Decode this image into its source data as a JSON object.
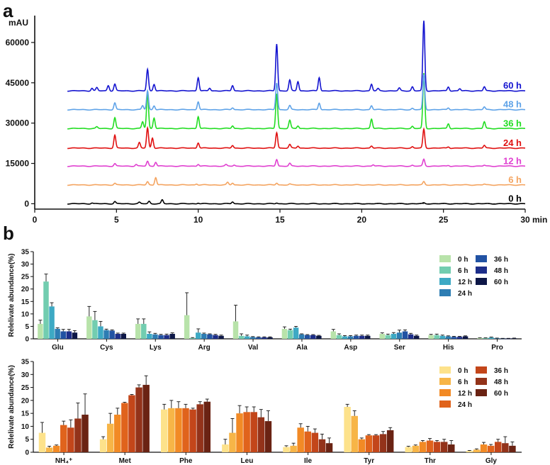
{
  "panel_a_letter": "a",
  "panel_b_letter": "b",
  "chart_data": [
    {
      "type": "line",
      "unit_label": "mAU",
      "xlabel": "min",
      "xlim": [
        0,
        30
      ],
      "ylim": [
        -2000,
        70000
      ],
      "xticks": [
        "0",
        "5",
        "10",
        "15",
        "20",
        "25",
        "30"
      ],
      "yticks": [
        "0",
        "15000",
        "30000",
        "45000",
        "60000"
      ],
      "xtick_values": [
        0,
        5,
        10,
        15,
        20,
        25,
        30
      ],
      "ytick_values": [
        0,
        15000,
        30000,
        45000,
        60000
      ],
      "series": [
        {
          "name": "0 h",
          "color": "#000000",
          "baseline": 0,
          "peaks": [
            [
              3.5,
              300
            ],
            [
              4.9,
              800
            ],
            [
              6.4,
              500
            ],
            [
              7.0,
              900
            ],
            [
              7.8,
              1400
            ],
            [
              10.0,
              300
            ],
            [
              12.1,
              700
            ],
            [
              14.8,
              300
            ],
            [
              23.8,
              300
            ]
          ]
        },
        {
          "name": "6 h",
          "color": "#f4a460",
          "baseline": 7000,
          "peaks": [
            [
              4.9,
              600
            ],
            [
              6.9,
              1200
            ],
            [
              7.4,
              2800
            ],
            [
              9.9,
              400
            ],
            [
              11.8,
              900
            ],
            [
              12.1,
              700
            ],
            [
              14.8,
              700
            ],
            [
              15.6,
              300
            ],
            [
              23.8,
              1200
            ],
            [
              27.5,
              300
            ]
          ]
        },
        {
          "name": "12 h",
          "color": "#e040d0",
          "baseline": 14000,
          "peaks": [
            [
              4.9,
              900
            ],
            [
              6.2,
              600
            ],
            [
              6.9,
              1800
            ],
            [
              7.4,
              1500
            ],
            [
              10.0,
              700
            ],
            [
              11.7,
              500
            ],
            [
              12.2,
              400
            ],
            [
              14.8,
              2500
            ],
            [
              15.6,
              1000
            ],
            [
              20.7,
              500
            ],
            [
              23.1,
              300
            ],
            [
              23.8,
              2500
            ],
            [
              25.3,
              300
            ],
            [
              27.5,
              300
            ]
          ]
        },
        {
          "name": "24 h",
          "color": "#e01010",
          "baseline": 20700,
          "peaks": [
            [
              4.9,
              4800
            ],
            [
              6.4,
              2000
            ],
            [
              6.9,
              7500
            ],
            [
              7.2,
              3800
            ],
            [
              10.0,
              2000
            ],
            [
              12.1,
              1000
            ],
            [
              14.8,
              5800
            ],
            [
              15.6,
              1300
            ],
            [
              16.1,
              800
            ],
            [
              20.6,
              800
            ],
            [
              23.1,
              500
            ],
            [
              23.8,
              7000
            ],
            [
              25.3,
              500
            ],
            [
              27.5,
              1000
            ]
          ]
        },
        {
          "name": "36 h",
          "color": "#22dd22",
          "baseline": 28000,
          "peaks": [
            [
              3.8,
              600
            ],
            [
              4.9,
              4000
            ],
            [
              6.6,
              2500
            ],
            [
              6.9,
              13000
            ],
            [
              7.3,
              4000
            ],
            [
              10.0,
              4500
            ],
            [
              12.1,
              1000
            ],
            [
              14.8,
              13000
            ],
            [
              15.6,
              3000
            ],
            [
              16.1,
              1000
            ],
            [
              20.6,
              3500
            ],
            [
              23.1,
              800
            ],
            [
              23.8,
              20500
            ],
            [
              25.3,
              1800
            ],
            [
              27.5,
              2500
            ]
          ]
        },
        {
          "name": "48 h",
          "color": "#5fa3e8",
          "baseline": 35000,
          "peaks": [
            [
              4.9,
              2500
            ],
            [
              6.6,
              1500
            ],
            [
              6.9,
              7000
            ],
            [
              7.3,
              1500
            ],
            [
              10.0,
              3000
            ],
            [
              12.1,
              700
            ],
            [
              14.8,
              10000
            ],
            [
              15.6,
              1500
            ],
            [
              17.4,
              2500
            ],
            [
              20.6,
              1500
            ],
            [
              23.1,
              500
            ],
            [
              23.8,
              13000
            ],
            [
              25.3,
              700
            ],
            [
              27.5,
              1000
            ]
          ]
        },
        {
          "name": "60 h",
          "color": "#1414d0",
          "baseline": 42000,
          "peaks": [
            [
              3.5,
              1000
            ],
            [
              3.8,
              1200
            ],
            [
              4.5,
              2000
            ],
            [
              4.9,
              2500
            ],
            [
              6.9,
              8000
            ],
            [
              7.3,
              2500
            ],
            [
              10.0,
              5000
            ],
            [
              10.7,
              1000
            ],
            [
              12.1,
              2000
            ],
            [
              14.8,
              17500
            ],
            [
              15.6,
              4000
            ],
            [
              16.1,
              3500
            ],
            [
              17.4,
              5000
            ],
            [
              20.6,
              2500
            ],
            [
              21.0,
              800
            ],
            [
              22.3,
              1000
            ],
            [
              23.1,
              1500
            ],
            [
              23.8,
              26000
            ],
            [
              25.3,
              1500
            ],
            [
              26.0,
              800
            ],
            [
              27.5,
              1500
            ]
          ]
        }
      ]
    },
    {
      "type": "bar",
      "ylabel": "Relelivate abundance(%)",
      "ylim": [
        0,
        35
      ],
      "yticks": [
        "0",
        "5",
        "10",
        "15",
        "20",
        "25",
        "30",
        "35"
      ],
      "ytick_values": [
        0,
        5,
        10,
        15,
        20,
        25,
        30,
        35
      ],
      "categories": [
        "Glu",
        "Cys",
        "Lys",
        "Arg",
        "Val",
        "Ala",
        "Asp",
        "Ser",
        "His",
        "Pro"
      ],
      "series": [
        {
          "name": "0 h",
          "color": "#b8e3aa",
          "values": [
            6.0,
            9.0,
            6.0,
            9.5,
            7.0,
            4.0,
            3.0,
            2.0,
            1.5,
            0.3
          ],
          "errors": [
            1.5,
            4.0,
            2.0,
            9.0,
            6.5,
            0.8,
            0.8,
            0.4,
            0.3,
            0.1
          ]
        },
        {
          "name": "6 h",
          "color": "#72cdb0",
          "values": [
            23.0,
            7.5,
            6.0,
            0.3,
            1.2,
            3.5,
            1.5,
            1.5,
            1.5,
            0.3
          ],
          "errors": [
            3.0,
            3.5,
            2.0,
            0.2,
            0.8,
            0.4,
            0.5,
            0.4,
            0.4,
            0.1
          ]
        },
        {
          "name": "12 h",
          "color": "#3da9c4",
          "values": [
            13.0,
            5.0,
            2.0,
            2.5,
            1.0,
            4.5,
            1.0,
            2.0,
            1.2,
            0.5
          ],
          "errors": [
            1.5,
            2.0,
            0.8,
            1.5,
            0.5,
            0.5,
            0.3,
            0.5,
            0.3,
            0.2
          ]
        },
        {
          "name": "24 h",
          "color": "#2d7db3",
          "values": [
            4.0,
            3.5,
            1.8,
            2.0,
            0.7,
            1.8,
            1.0,
            2.5,
            1.0,
            0.2
          ],
          "errors": [
            0.4,
            0.4,
            0.4,
            0.3,
            0.2,
            0.2,
            0.3,
            1.0,
            0.2,
            0.1
          ]
        },
        {
          "name": "36 h",
          "color": "#2152a3",
          "values": [
            3.0,
            3.3,
            1.5,
            1.8,
            0.6,
            1.5,
            1.2,
            3.0,
            0.8,
            0.1
          ],
          "errors": [
            0.8,
            0.3,
            0.3,
            0.2,
            0.2,
            0.2,
            0.3,
            0.6,
            0.2,
            0.1
          ]
        },
        {
          "name": "48 h",
          "color": "#1d2e8a",
          "values": [
            3.0,
            2.0,
            1.5,
            1.5,
            0.6,
            1.5,
            1.2,
            1.8,
            0.8,
            0.1
          ],
          "errors": [
            0.8,
            0.3,
            0.4,
            0.3,
            0.2,
            0.2,
            0.3,
            0.4,
            0.2,
            0.1
          ]
        },
        {
          "name": "60 h",
          "color": "#0d1747",
          "values": [
            2.5,
            2.0,
            2.0,
            1.2,
            0.6,
            1.2,
            1.2,
            1.2,
            1.0,
            0.2
          ],
          "errors": [
            0.8,
            0.3,
            0.4,
            0.3,
            0.2,
            0.2,
            0.3,
            0.3,
            0.2,
            0.1
          ]
        }
      ]
    },
    {
      "type": "bar",
      "ylabel": "Relelivate abundance(%)",
      "ylim": [
        0,
        35
      ],
      "yticks": [
        "0",
        "5",
        "10",
        "15",
        "20",
        "25",
        "30",
        "35"
      ],
      "ytick_values": [
        0,
        5,
        10,
        15,
        20,
        25,
        30,
        35
      ],
      "categories": [
        "NH₄⁺",
        "Met",
        "Phe",
        "Leu",
        "Ile",
        "Tyr",
        "Thr",
        "Gly"
      ],
      "series": [
        {
          "name": "0 h",
          "color": "#fde28b",
          "values": [
            7.5,
            5.0,
            16.5,
            3.0,
            2.0,
            17.5,
            2.0,
            0.5
          ],
          "errors": [
            4.0,
            1.0,
            2.0,
            2.0,
            0.5,
            1.0,
            0.3,
            0.2
          ]
        },
        {
          "name": "6 h",
          "color": "#f7b547",
          "values": [
            1.8,
            11.0,
            17.0,
            7.5,
            2.5,
            14.0,
            2.5,
            1.0
          ],
          "errors": [
            0.5,
            4.0,
            3.0,
            5.5,
            1.0,
            2.0,
            0.3,
            0.3
          ]
        },
        {
          "name": "12 h",
          "color": "#f28a25",
          "values": [
            2.5,
            14.5,
            17.0,
            15.0,
            9.5,
            5.0,
            4.0,
            3.0
          ],
          "errors": [
            0.3,
            2.5,
            2.5,
            3.0,
            1.5,
            0.5,
            0.5,
            0.8
          ]
        },
        {
          "name": "24 h",
          "color": "#e0631c",
          "values": [
            10.5,
            19.0,
            17.0,
            15.5,
            8.0,
            6.5,
            4.5,
            2.5
          ],
          "errors": [
            1.5,
            0.3,
            1.5,
            2.0,
            2.0,
            0.3,
            0.8,
            0.5
          ]
        },
        {
          "name": "36 h",
          "color": "#c3461a",
          "values": [
            9.5,
            22.0,
            16.5,
            15.5,
            7.5,
            6.5,
            4.0,
            4.0
          ],
          "errors": [
            3.0,
            0.3,
            0.5,
            2.0,
            1.5,
            0.3,
            0.5,
            1.0
          ]
        },
        {
          "name": "48 h",
          "color": "#93331a",
          "values": [
            13.0,
            25.0,
            18.5,
            13.5,
            5.0,
            7.0,
            4.0,
            3.5
          ],
          "errors": [
            6.0,
            1.0,
            1.0,
            3.0,
            2.0,
            1.0,
            1.0,
            2.5
          ]
        },
        {
          "name": "60 h",
          "color": "#6a2313",
          "values": [
            14.5,
            26.0,
            19.5,
            12.0,
            3.5,
            8.5,
            3.0,
            2.5
          ],
          "errors": [
            8.0,
            3.5,
            1.0,
            4.0,
            2.0,
            1.0,
            1.5,
            1.5
          ]
        }
      ]
    }
  ]
}
